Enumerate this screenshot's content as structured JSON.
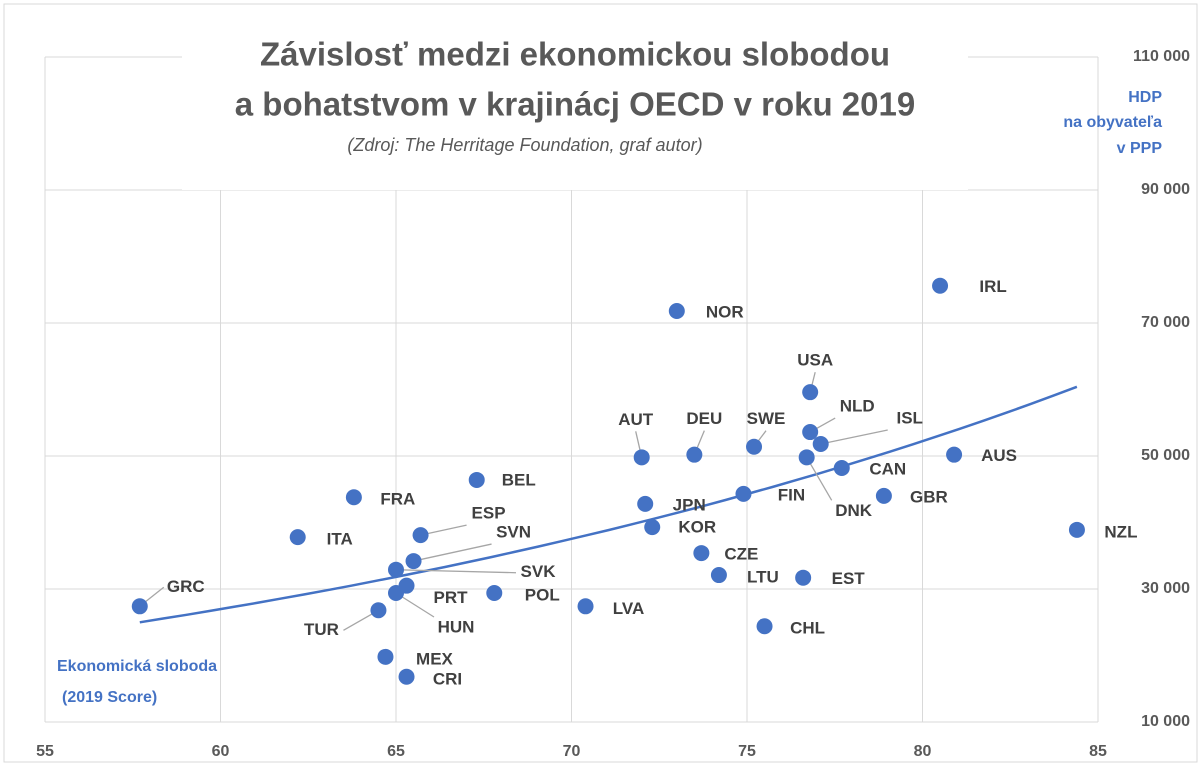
{
  "chart_data": {
    "type": "scatter",
    "title": [
      "Závislosť medzi ekonomickou slobodou",
      "a bohatstvom  v krajinácj OECD v roku 2019"
    ],
    "subtitle": "(Zdroj: The Herritage Foundation, graf autor)",
    "y_axis_label": [
      "HDP",
      "na obyvateľa",
      "v PPP"
    ],
    "x_axis_label": [
      "Ekonomická sloboda",
      "(2019 Score)"
    ],
    "color": "#4472c4",
    "grid": true,
    "xlim": [
      55,
      85
    ],
    "xticks": [
      55,
      60,
      65,
      70,
      75,
      80,
      85
    ],
    "ylim": [
      10000,
      110000
    ],
    "yticks": [
      {
        "value": 10000,
        "label": "10 000"
      },
      {
        "value": 30000,
        "label": "30 000"
      },
      {
        "value": 50000,
        "label": "50 000"
      },
      {
        "value": 70000,
        "label": "70 000"
      },
      {
        "value": 90000,
        "label": "90 000"
      },
      {
        "value": 110000,
        "label": "110 000"
      }
    ],
    "labels": [
      "GRC",
      "ITA",
      "FRA",
      "BEL",
      "ESP",
      "SVN",
      "SVK",
      "PRT",
      "HUN",
      "TUR",
      "MEX",
      "CRI",
      "POL",
      "LVA",
      "AUT",
      "DEU",
      "JPN",
      "KOR",
      "CZE",
      "LTU",
      "NOR",
      "SWE",
      "FIN",
      "CHL",
      "EST",
      "USA",
      "NLD",
      "DNK",
      "ISL",
      "CAN",
      "GBR",
      "AUS",
      "IRL",
      "NZL"
    ],
    "x": [
      57.7,
      62.2,
      63.8,
      67.3,
      65.7,
      65.5,
      65.0,
      65.3,
      65.0,
      64.5,
      64.7,
      65.3,
      67.8,
      70.4,
      72.0,
      73.5,
      72.1,
      72.3,
      73.7,
      74.2,
      73.0,
      75.2,
      74.9,
      75.5,
      76.6,
      76.8,
      76.8,
      76.7,
      77.1,
      77.7,
      78.9,
      80.9,
      80.5,
      84.4
    ],
    "values": [
      27400,
      37800,
      43800,
      46400,
      38100,
      34200,
      32900,
      30500,
      29400,
      26800,
      19800,
      16800,
      29400,
      27400,
      49800,
      50200,
      42800,
      39300,
      35400,
      32100,
      71800,
      51400,
      44300,
      24400,
      31700,
      59600,
      53600,
      49800,
      51800,
      48200,
      44000,
      50200,
      75600,
      38900
    ],
    "trendline": {
      "type": "exponential",
      "x": [
        57.7,
        84.4
      ],
      "values": [
        25000,
        60400
      ]
    }
  }
}
